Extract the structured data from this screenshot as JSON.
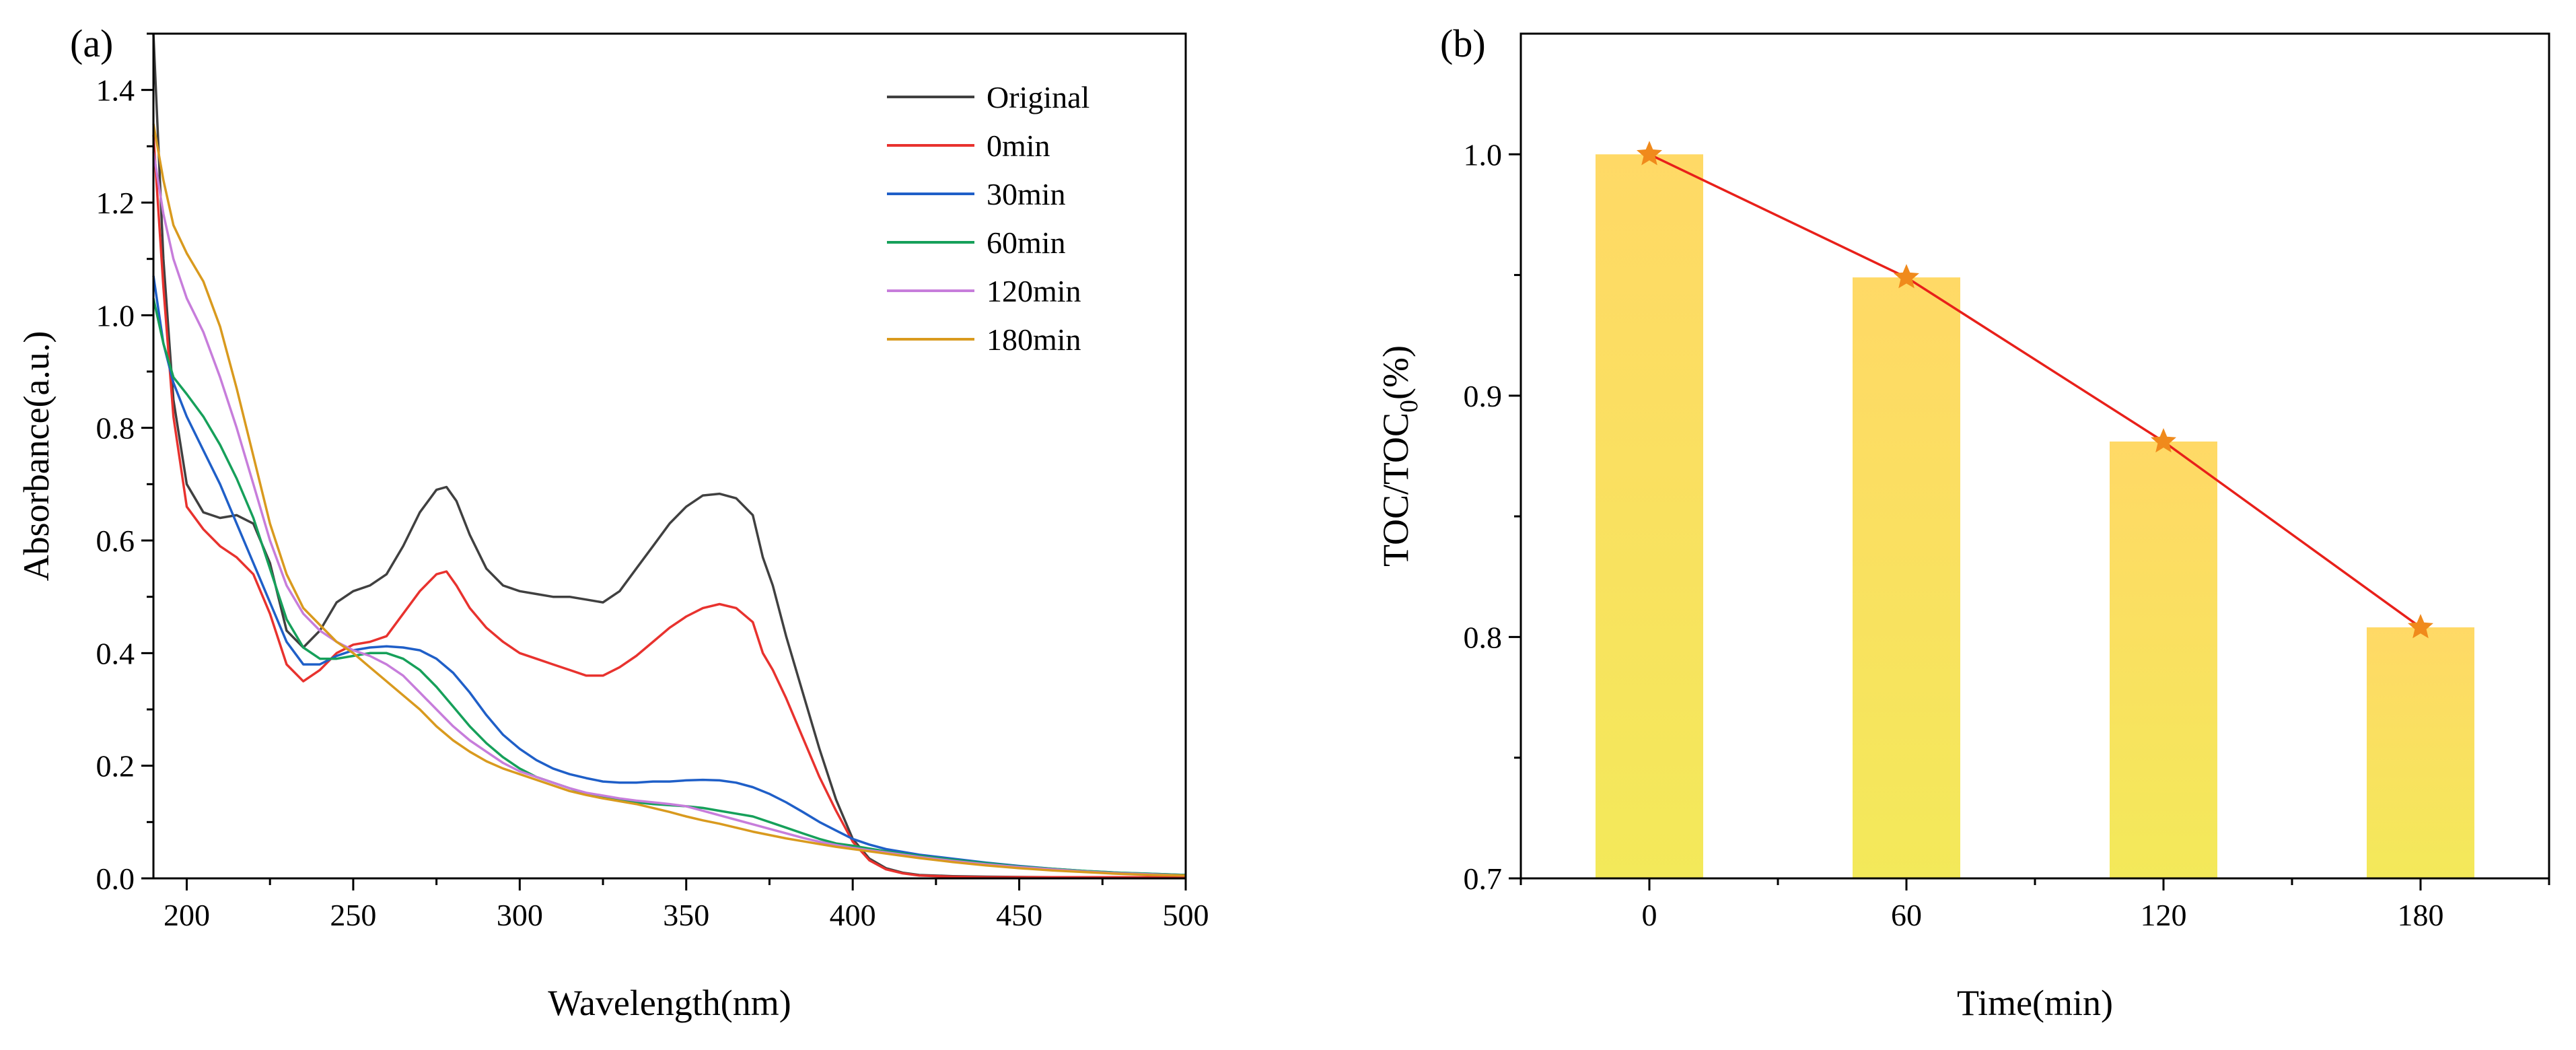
{
  "panels": {
    "a_label": "(a)",
    "b_label": "(b)"
  },
  "chart_data": [
    {
      "id": "a",
      "type": "line",
      "title": "",
      "xlabel": "Wavelength(nm)",
      "ylabel": "Absorbance(a.u.)",
      "xlim": [
        190,
        500
      ],
      "ylim": [
        0,
        1.5
      ],
      "xticks": [
        200,
        250,
        300,
        350,
        400,
        450,
        500
      ],
      "xtick_labels": [
        "200",
        "250",
        "300",
        "350",
        "400",
        "450",
        "500"
      ],
      "yticks": [
        0,
        0.2,
        0.4,
        0.6,
        0.8,
        1.0,
        1.2,
        1.4
      ],
      "ytick_labels": [
        "0.0",
        "0.2",
        "0.4",
        "0.6",
        "0.8",
        "1.0",
        "1.2",
        "1.4"
      ],
      "legend_position": "top-right",
      "series": [
        {
          "name": "Original",
          "color": "#404040",
          "x": [
            190,
            193,
            196,
            200,
            205,
            210,
            215,
            220,
            225,
            230,
            235,
            240,
            245,
            250,
            255,
            260,
            265,
            270,
            275,
            278,
            281,
            285,
            290,
            295,
            300,
            305,
            310,
            315,
            320,
            325,
            330,
            335,
            340,
            345,
            350,
            355,
            360,
            365,
            370,
            373,
            376,
            380,
            385,
            390,
            395,
            400,
            405,
            410,
            415,
            420,
            430,
            440,
            460,
            480,
            500
          ],
          "y": [
            1.5,
            1.1,
            0.85,
            0.7,
            0.65,
            0.64,
            0.645,
            0.63,
            0.56,
            0.44,
            0.41,
            0.44,
            0.49,
            0.51,
            0.52,
            0.54,
            0.59,
            0.65,
            0.69,
            0.695,
            0.67,
            0.61,
            0.55,
            0.52,
            0.51,
            0.505,
            0.5,
            0.5,
            0.495,
            0.49,
            0.51,
            0.55,
            0.59,
            0.63,
            0.66,
            0.68,
            0.683,
            0.675,
            0.645,
            0.57,
            0.52,
            0.43,
            0.33,
            0.23,
            0.14,
            0.07,
            0.035,
            0.018,
            0.01,
            0.006,
            0.004,
            0.003,
            0.002,
            0.002,
            0.002
          ]
        },
        {
          "name": "0min",
          "color": "#e8322e",
          "x": [
            190,
            193,
            196,
            200,
            205,
            210,
            215,
            220,
            225,
            230,
            235,
            240,
            245,
            250,
            255,
            260,
            265,
            270,
            275,
            278,
            281,
            285,
            290,
            295,
            300,
            305,
            310,
            315,
            320,
            325,
            330,
            335,
            340,
            345,
            350,
            355,
            360,
            365,
            370,
            373,
            376,
            380,
            385,
            390,
            395,
            400,
            405,
            410,
            415,
            420,
            430,
            440,
            460,
            480,
            500
          ],
          "y": [
            1.32,
            1.05,
            0.82,
            0.66,
            0.62,
            0.59,
            0.57,
            0.54,
            0.47,
            0.38,
            0.35,
            0.37,
            0.4,
            0.415,
            0.42,
            0.43,
            0.47,
            0.51,
            0.54,
            0.545,
            0.52,
            0.48,
            0.445,
            0.42,
            0.4,
            0.39,
            0.38,
            0.37,
            0.36,
            0.36,
            0.375,
            0.395,
            0.42,
            0.445,
            0.465,
            0.48,
            0.487,
            0.48,
            0.455,
            0.4,
            0.37,
            0.32,
            0.25,
            0.18,
            0.12,
            0.065,
            0.032,
            0.016,
            0.009,
            0.005,
            0.003,
            0.002,
            0.002,
            0.002,
            0.002
          ]
        },
        {
          "name": "30min",
          "color": "#1f5fc8",
          "x": [
            190,
            193,
            196,
            200,
            205,
            210,
            215,
            220,
            225,
            230,
            235,
            240,
            245,
            250,
            255,
            260,
            265,
            270,
            275,
            280,
            285,
            290,
            295,
            300,
            305,
            310,
            315,
            320,
            325,
            330,
            335,
            340,
            345,
            350,
            355,
            360,
            365,
            370,
            375,
            380,
            385,
            390,
            395,
            400,
            405,
            410,
            420,
            430,
            440,
            450,
            460,
            470,
            480,
            490,
            500
          ],
          "y": [
            1.07,
            0.95,
            0.88,
            0.82,
            0.76,
            0.7,
            0.63,
            0.56,
            0.49,
            0.42,
            0.38,
            0.38,
            0.395,
            0.405,
            0.41,
            0.412,
            0.41,
            0.405,
            0.39,
            0.365,
            0.33,
            0.29,
            0.255,
            0.23,
            0.21,
            0.195,
            0.185,
            0.178,
            0.172,
            0.17,
            0.17,
            0.172,
            0.172,
            0.174,
            0.175,
            0.174,
            0.17,
            0.162,
            0.15,
            0.135,
            0.118,
            0.1,
            0.085,
            0.07,
            0.06,
            0.052,
            0.042,
            0.035,
            0.028,
            0.022,
            0.017,
            0.013,
            0.01,
            0.008,
            0.006
          ]
        },
        {
          "name": "60min",
          "color": "#16a05a",
          "x": [
            190,
            193,
            196,
            200,
            205,
            210,
            215,
            220,
            225,
            230,
            235,
            240,
            245,
            250,
            255,
            260,
            265,
            270,
            275,
            280,
            285,
            290,
            295,
            300,
            305,
            310,
            315,
            320,
            325,
            330,
            335,
            340,
            345,
            350,
            355,
            360,
            365,
            370,
            375,
            380,
            385,
            390,
            395,
            400,
            405,
            410,
            420,
            430,
            440,
            450,
            460,
            470,
            480,
            490,
            500
          ],
          "y": [
            1.03,
            0.95,
            0.89,
            0.86,
            0.82,
            0.77,
            0.71,
            0.64,
            0.55,
            0.46,
            0.41,
            0.39,
            0.39,
            0.395,
            0.4,
            0.4,
            0.39,
            0.37,
            0.34,
            0.305,
            0.27,
            0.24,
            0.215,
            0.195,
            0.18,
            0.17,
            0.16,
            0.15,
            0.145,
            0.14,
            0.135,
            0.132,
            0.13,
            0.128,
            0.125,
            0.12,
            0.115,
            0.11,
            0.1,
            0.09,
            0.08,
            0.07,
            0.062,
            0.058,
            0.053,
            0.048,
            0.04,
            0.033,
            0.027,
            0.021,
            0.017,
            0.013,
            0.01,
            0.008,
            0.006
          ]
        },
        {
          "name": "120min",
          "color": "#c77ddb",
          "x": [
            190,
            193,
            196,
            200,
            205,
            210,
            215,
            220,
            225,
            230,
            235,
            240,
            245,
            250,
            255,
            260,
            265,
            270,
            275,
            280,
            285,
            290,
            295,
            300,
            305,
            310,
            315,
            320,
            325,
            330,
            335,
            340,
            345,
            350,
            355,
            360,
            365,
            370,
            375,
            380,
            385,
            390,
            395,
            400,
            405,
            410,
            420,
            430,
            440,
            450,
            460,
            470,
            480,
            490,
            500
          ],
          "y": [
            1.29,
            1.18,
            1.1,
            1.03,
            0.97,
            0.89,
            0.8,
            0.7,
            0.6,
            0.52,
            0.47,
            0.44,
            0.42,
            0.405,
            0.395,
            0.38,
            0.36,
            0.33,
            0.3,
            0.27,
            0.245,
            0.225,
            0.205,
            0.19,
            0.18,
            0.17,
            0.16,
            0.152,
            0.147,
            0.142,
            0.138,
            0.135,
            0.132,
            0.128,
            0.12,
            0.112,
            0.104,
            0.096,
            0.088,
            0.08,
            0.072,
            0.065,
            0.059,
            0.054,
            0.05,
            0.046,
            0.038,
            0.031,
            0.025,
            0.02,
            0.016,
            0.012,
            0.009,
            0.007,
            0.005
          ]
        },
        {
          "name": "180min",
          "color": "#d99a1e",
          "x": [
            190,
            193,
            196,
            200,
            205,
            210,
            215,
            220,
            225,
            230,
            235,
            240,
            245,
            250,
            255,
            260,
            265,
            270,
            275,
            280,
            285,
            290,
            295,
            300,
            305,
            310,
            315,
            320,
            325,
            330,
            335,
            340,
            345,
            350,
            355,
            360,
            365,
            370,
            375,
            380,
            385,
            390,
            395,
            400,
            405,
            410,
            420,
            430,
            440,
            450,
            460,
            470,
            480,
            490,
            500
          ],
          "y": [
            1.34,
            1.24,
            1.16,
            1.11,
            1.06,
            0.98,
            0.87,
            0.75,
            0.63,
            0.54,
            0.48,
            0.45,
            0.42,
            0.4,
            0.375,
            0.35,
            0.325,
            0.3,
            0.27,
            0.245,
            0.225,
            0.208,
            0.195,
            0.185,
            0.175,
            0.165,
            0.155,
            0.148,
            0.142,
            0.137,
            0.132,
            0.125,
            0.118,
            0.11,
            0.103,
            0.097,
            0.09,
            0.083,
            0.077,
            0.071,
            0.066,
            0.061,
            0.056,
            0.052,
            0.048,
            0.044,
            0.036,
            0.029,
            0.023,
            0.018,
            0.014,
            0.011,
            0.008,
            0.006,
            0.005
          ]
        }
      ]
    },
    {
      "id": "b",
      "type": "bar",
      "title": "",
      "xlabel": "Time(min)",
      "ylabel": "TOC/TOC",
      "ylabel_subscript": "0",
      "ylabel_suffix": "(%)",
      "categories": [
        "0",
        "60",
        "120",
        "180"
      ],
      "values": [
        1.0,
        0.949,
        0.881,
        0.804
      ],
      "ylim": [
        0.7,
        1.05
      ],
      "yticks": [
        0.7,
        0.8,
        0.9,
        1.0
      ],
      "ytick_labels": [
        "0.7",
        "0.8",
        "0.9",
        "1.0"
      ],
      "bar_color_top": "#ffd966",
      "bar_color_bottom": "#f3e95a",
      "line_color": "#e8201a",
      "marker_color": "#f08a1c",
      "overlay": "line-with-star-markers"
    }
  ]
}
